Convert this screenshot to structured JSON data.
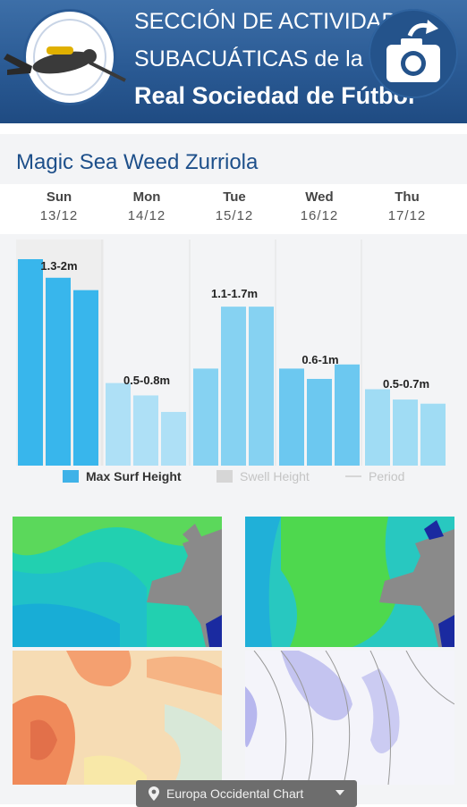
{
  "header": {
    "line1": "SECCIÓN DE ACTIVIDADES",
    "line2": "SUBACUÁTICAS de la",
    "line3": "Real Sociedad de Fútbol",
    "logo_icon": "diver-logo",
    "camera_icon": "camera-rotate-icon"
  },
  "spot": {
    "title": "Magic Sea Weed Zurriola"
  },
  "days": [
    {
      "name": "Sun",
      "date": "13/12"
    },
    {
      "name": "Mon",
      "date": "14/12"
    },
    {
      "name": "Tue",
      "date": "15/12"
    },
    {
      "name": "Wed",
      "date": "16/12"
    },
    {
      "name": "Thu",
      "date": "17/12"
    }
  ],
  "chart_data": {
    "type": "bar",
    "categories": [
      "Sun",
      "Mon",
      "Tue",
      "Wed",
      "Thu"
    ],
    "bars_per_day": 3,
    "max_surf_height_relative": [
      [
        1.0,
        0.91,
        0.85
      ],
      [
        0.4,
        0.34,
        0.26
      ],
      [
        0.47,
        0.77,
        0.77
      ],
      [
        0.47,
        0.42,
        0.49
      ],
      [
        0.37,
        0.32,
        0.3
      ]
    ],
    "range_labels": [
      "1.3-2m",
      "0.5-0.8m",
      "1.1-1.7m",
      "0.6-1m",
      "0.5-0.7m"
    ],
    "legend": [
      {
        "label": "Max Surf Height",
        "color": "#3fb2e8"
      },
      {
        "label": "Swell Height",
        "color": "#cccccc"
      },
      {
        "label": "Period",
        "color": "#cccccc"
      }
    ],
    "highlight_day": "Sun"
  },
  "maps_panel": {
    "selector_label": "Europa Occidental Chart",
    "pin_icon": "location-pin-icon",
    "caret_icon": "caret-down-icon"
  }
}
